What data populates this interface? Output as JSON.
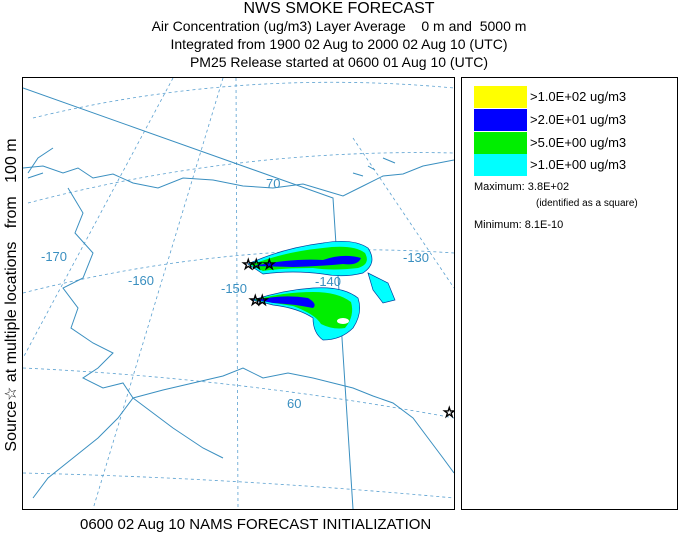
{
  "title": {
    "line1": "NWS SMOKE FORECAST",
    "line2": "Air Concentration (ug/m3) Layer Average    0 m and  5000 m",
    "line3": "Integrated from 1900 02 Aug to 2000 02 Aug 10 (UTC)",
    "line4": "PM25 Release started at 0600 01 Aug 10 (UTC)"
  },
  "side_label": "Source☆ at multiple locations   from   100 m",
  "footer": "0600 02 Aug 10 NAMS FORECAST INITIALIZATION",
  "map": {
    "longitude_labels": [
      "-170",
      "-160",
      "-150",
      "-140",
      "-130"
    ],
    "latitude_labels": [
      "70",
      "60"
    ],
    "colors": {
      "coast": "#3a8fc0",
      "grid": "#5aa0d0"
    }
  },
  "legend": {
    "items": [
      {
        "label": ">1.0E+02 ug/m3",
        "color": "#ffff00"
      },
      {
        "label": ">2.0E+01 ug/m3",
        "color": "#0000ff"
      },
      {
        "label": ">5.0E+00 ug/m3",
        "color": "#00ee00"
      },
      {
        "label": ">1.0E+00 ug/m3",
        "color": "#00ffff"
      }
    ],
    "maximum": "Maximum: 3.8E+02",
    "maximum_note": "(identified as a square)",
    "minimum": "Minimum: 8.1E-10"
  }
}
